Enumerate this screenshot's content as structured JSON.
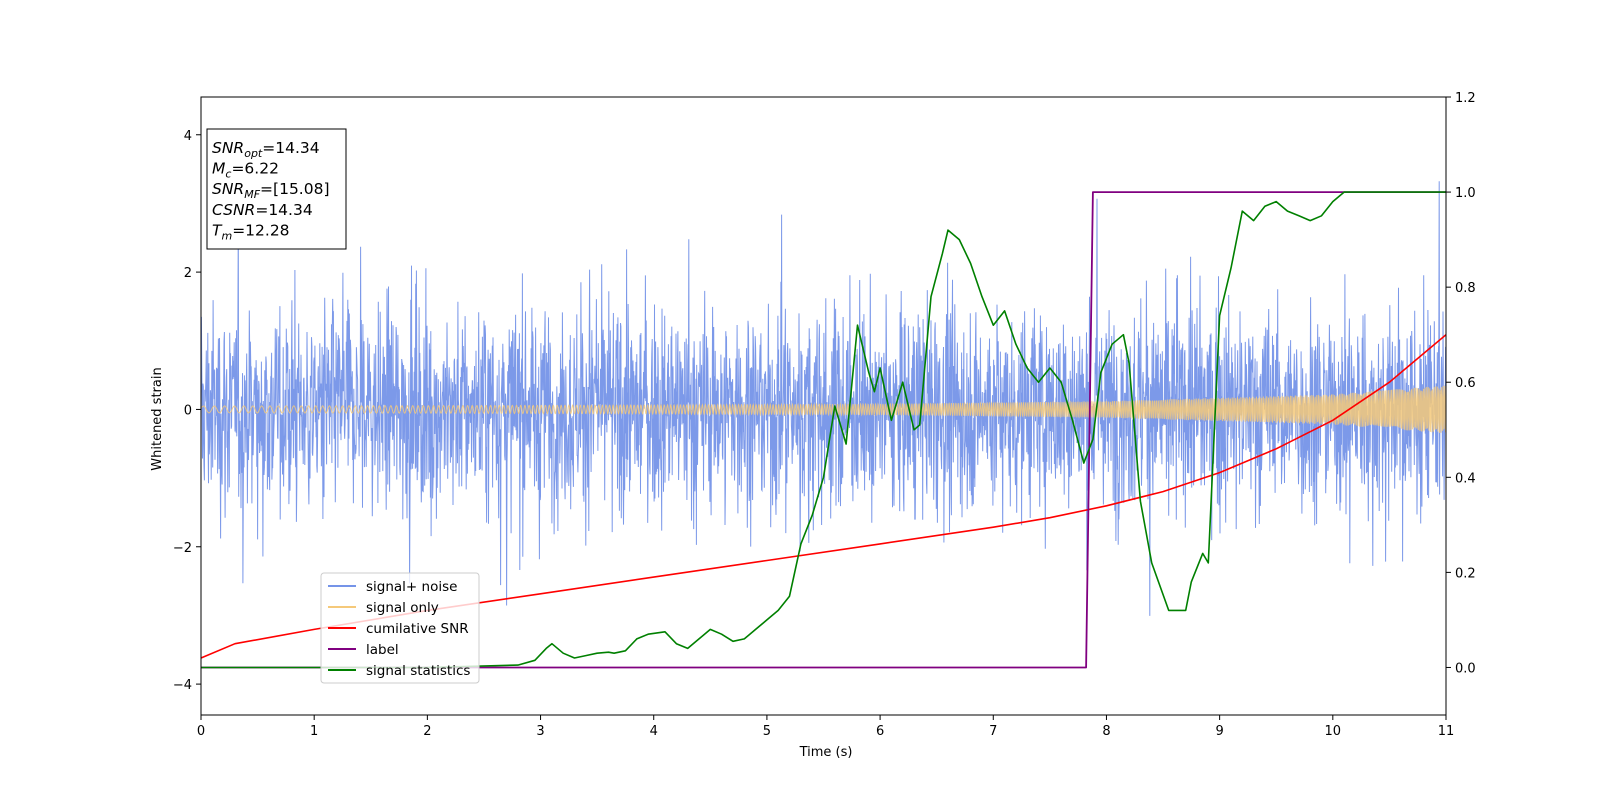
{
  "chart_data": {
    "type": "line",
    "xlabel": "Time (s)",
    "ylabel": "Whitened strain",
    "xlim": [
      0,
      11
    ],
    "ylim_left": [
      -4.45,
      4.55
    ],
    "ylim_right": [
      -0.1,
      1.2
    ],
    "x_ticks": [
      "0",
      "1",
      "2",
      "3",
      "4",
      "5",
      "6",
      "7",
      "8",
      "9",
      "10",
      "11"
    ],
    "y_ticks_left": [
      "−4",
      "−2",
      "0",
      "2",
      "4"
    ],
    "y_ticks_right": [
      "0.0",
      "0.2",
      "0.4",
      "0.6",
      "0.8",
      "1.0",
      "1.2"
    ],
    "grid": false,
    "legend_position": "lower-left",
    "stats_box": {
      "lines": [
        {
          "sym": "SNR",
          "sub": "opt",
          "val": "=14.34"
        },
        {
          "sym": "M",
          "sub": "c",
          "val": "=6.22"
        },
        {
          "sym": "SNR",
          "sub": "MF",
          "val": "=[15.08]"
        },
        {
          "sym": "CSNR",
          "sub": "",
          "val": "=14.34"
        },
        {
          "sym": "T",
          "sub": "m",
          "val": "=12.28"
        }
      ]
    },
    "series": [
      {
        "name": "signal+ noise",
        "color": "#7594e8",
        "axis": "left",
        "description": "noisy whitened strain, roughly uniform band between -2.5 and 2.5 with spikes up to about 4.2"
      },
      {
        "name": "signal only",
        "color": "#f5c97a",
        "axis": "left",
        "envelope": {
          "x": [
            0,
            2,
            4,
            6,
            8,
            10,
            11
          ],
          "amplitude": [
            0.05,
            0.055,
            0.065,
            0.08,
            0.12,
            0.22,
            0.35
          ]
        }
      },
      {
        "name": "cumilative SNR",
        "color": "#ff0000",
        "axis": "right",
        "x": [
          0,
          0.3,
          1,
          2,
          3,
          4,
          5,
          6,
          7,
          7.5,
          8,
          8.5,
          9,
          9.5,
          10,
          10.5,
          11
        ],
        "y": [
          0.02,
          0.05,
          0.08,
          0.12,
          0.155,
          0.19,
          0.225,
          0.26,
          0.295,
          0.315,
          0.34,
          0.37,
          0.41,
          0.46,
          0.52,
          0.6,
          0.7
        ]
      },
      {
        "name": "label",
        "color": "#800080",
        "axis": "right",
        "x": [
          0,
          7.82,
          7.88,
          11
        ],
        "y": [
          0,
          0,
          1,
          1
        ]
      },
      {
        "name": "signal statistics",
        "color": "#008000",
        "axis": "right",
        "x": [
          0,
          1,
          2,
          2.8,
          2.95,
          3.05,
          3.1,
          3.2,
          3.3,
          3.4,
          3.5,
          3.6,
          3.65,
          3.75,
          3.85,
          3.95,
          4.1,
          4.2,
          4.3,
          4.4,
          4.5,
          4.6,
          4.7,
          4.8,
          4.9,
          5,
          5.1,
          5.2,
          5.3,
          5.4,
          5.5,
          5.6,
          5.7,
          5.8,
          5.9,
          5.95,
          6,
          6.1,
          6.2,
          6.3,
          6.35,
          6.45,
          6.55,
          6.6,
          6.7,
          6.8,
          6.9,
          7,
          7.1,
          7.2,
          7.3,
          7.4,
          7.5,
          7.6,
          7.7,
          7.8,
          7.88,
          7.95,
          8.05,
          8.15,
          8.2,
          8.3,
          8.4,
          8.55,
          8.7,
          8.75,
          8.85,
          8.9,
          9,
          9.1,
          9.2,
          9.3,
          9.4,
          9.5,
          9.6,
          9.7,
          9.8,
          9.9,
          10,
          10.1,
          10.3,
          10.5,
          11
        ],
        "y": [
          0,
          0,
          0,
          0.005,
          0.015,
          0.04,
          0.05,
          0.03,
          0.02,
          0.025,
          0.03,
          0.032,
          0.03,
          0.035,
          0.06,
          0.07,
          0.075,
          0.05,
          0.04,
          0.06,
          0.08,
          0.07,
          0.055,
          0.06,
          0.08,
          0.1,
          0.12,
          0.15,
          0.26,
          0.32,
          0.4,
          0.55,
          0.47,
          0.72,
          0.62,
          0.58,
          0.63,
          0.52,
          0.6,
          0.5,
          0.51,
          0.78,
          0.87,
          0.92,
          0.9,
          0.85,
          0.78,
          0.72,
          0.75,
          0.68,
          0.63,
          0.6,
          0.63,
          0.6,
          0.52,
          0.43,
          0.48,
          0.62,
          0.68,
          0.7,
          0.64,
          0.35,
          0.22,
          0.12,
          0.12,
          0.18,
          0.24,
          0.22,
          0.74,
          0.84,
          0.96,
          0.94,
          0.97,
          0.98,
          0.96,
          0.95,
          0.94,
          0.95,
          0.98,
          1,
          1,
          1,
          1
        ]
      }
    ]
  }
}
